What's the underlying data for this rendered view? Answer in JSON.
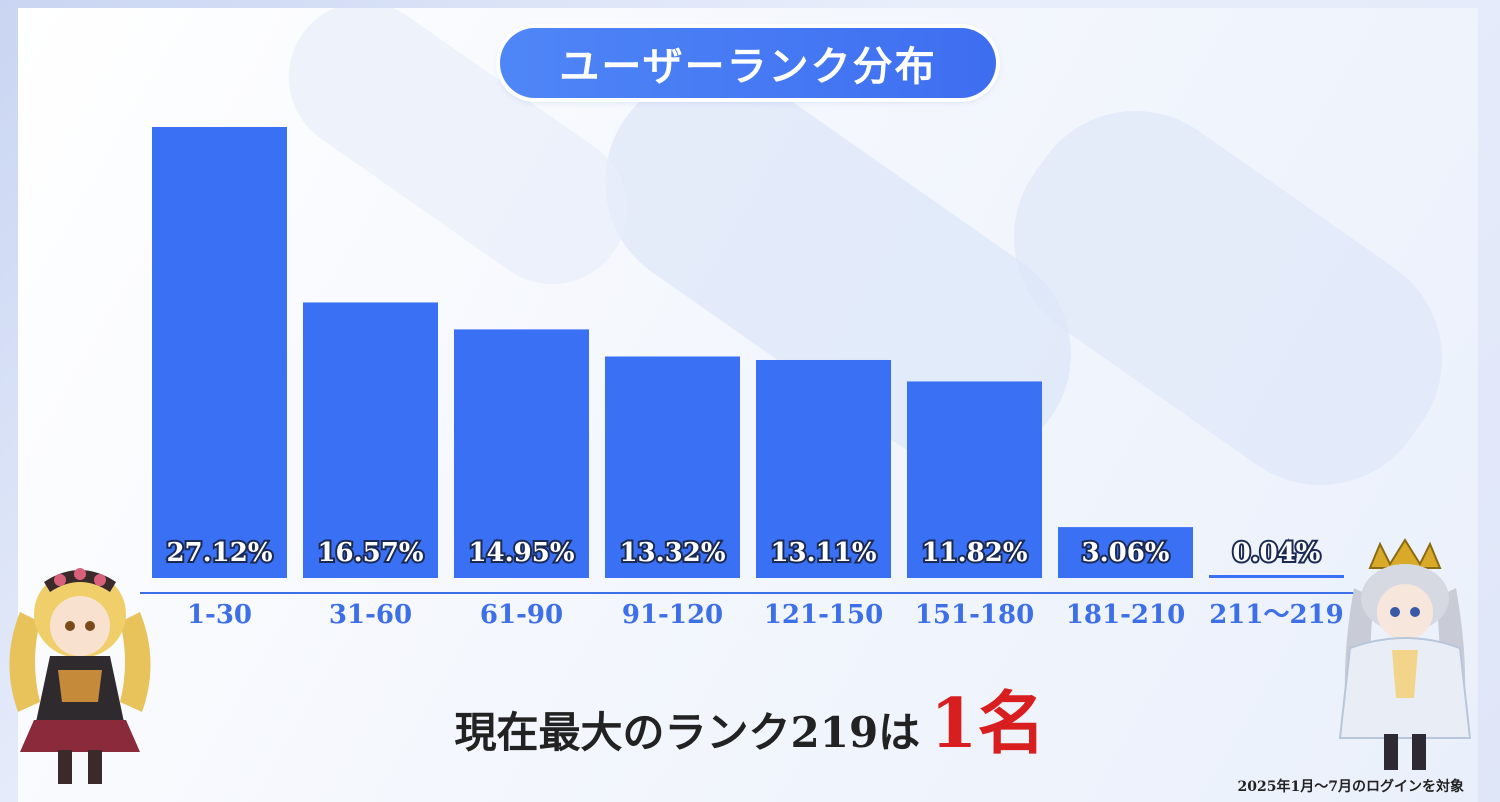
{
  "title": "ユーザーランク分布",
  "chart_data": {
    "type": "bar",
    "categories": [
      "1-30",
      "31-60",
      "61-90",
      "91-120",
      "121-150",
      "151-180",
      "181-210",
      "211～219"
    ],
    "values": [
      27.12,
      16.57,
      14.95,
      13.32,
      13.11,
      11.82,
      3.06,
      0.04
    ],
    "value_labels": [
      "27.12%",
      "16.57%",
      "14.95%",
      "13.32%",
      "13.11%",
      "11.82%",
      "3.06%",
      "0.04%"
    ],
    "ylim": [
      0,
      27.12
    ],
    "grid": false,
    "bar_color": "#3a70f4"
  },
  "headline": {
    "main": "現在最大のランク219は",
    "count": "1名"
  },
  "footnote": "2025年1月～7月のログインを対象",
  "colors": {
    "accent": "#3a70f4",
    "highlight": "#d81e1e",
    "axis": "#3d6fe8"
  },
  "characters": [
    "girl-character-illustration",
    "crowned-character-illustration"
  ]
}
